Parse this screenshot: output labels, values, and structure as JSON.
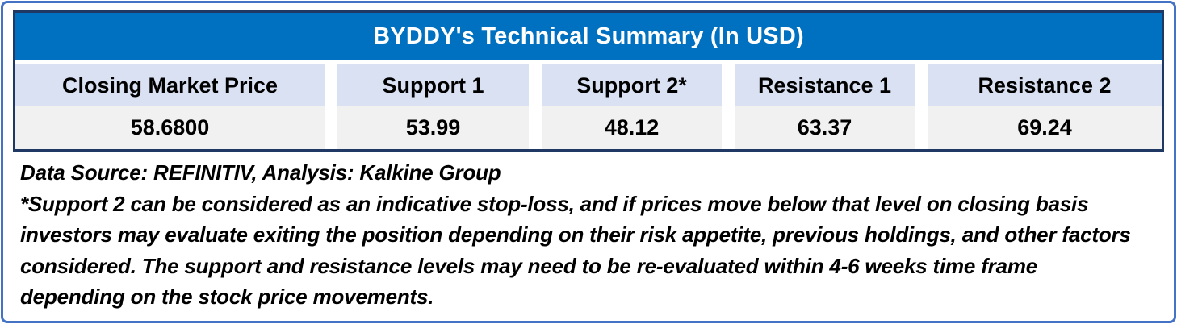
{
  "table": {
    "title": "BYDDY's Technical Summary (In USD)",
    "columns": [
      {
        "header": "Closing Market Price",
        "value": "58.6800"
      },
      {
        "header": "Support 1",
        "value": "53.99"
      },
      {
        "header": "Support 2*",
        "value": "48.12"
      },
      {
        "header": "Resistance 1",
        "value": "63.37"
      },
      {
        "header": "Resistance 2",
        "value": "69.24"
      }
    ]
  },
  "notes": {
    "source_line": "Data Source: REFINITIV, Analysis: Kalkine Group",
    "disclaimer": "*Support 2 can be considered as an indicative stop-loss, and if prices move below that level on closing basis investors may evaluate exiting the position depending on their risk appetite, previous holdings, and other factors considered. The support and resistance levels may need to be re-evaluated within 4-6 weeks time frame depending on the stock price movements."
  },
  "colors": {
    "frame_blue": "#4472C4",
    "table_border_navy": "#1F3864",
    "header_blue": "#0070C0",
    "title_text": "#FFFFFF",
    "band_lavender": "#D9E1F2",
    "band_gray": "#F1F1F1"
  },
  "chart_data": {
    "type": "table",
    "title": "BYDDY's Technical Summary (In USD)",
    "columns": [
      "Closing Market Price",
      "Support 1",
      "Support 2*",
      "Resistance 1",
      "Resistance 2"
    ],
    "rows": [
      [
        "58.6800",
        "53.99",
        "48.12",
        "63.37",
        "69.24"
      ]
    ],
    "footnotes": [
      "Data Source: REFINITIV, Analysis: Kalkine Group",
      "*Support 2 can be considered as an indicative stop-loss, and if prices move below that level on closing basis investors may evaluate exiting the position depending on their risk appetite, previous holdings, and other factors considered. The support and resistance levels may need to be re-evaluated within 4-6 weeks time frame depending on the stock price movements."
    ]
  }
}
